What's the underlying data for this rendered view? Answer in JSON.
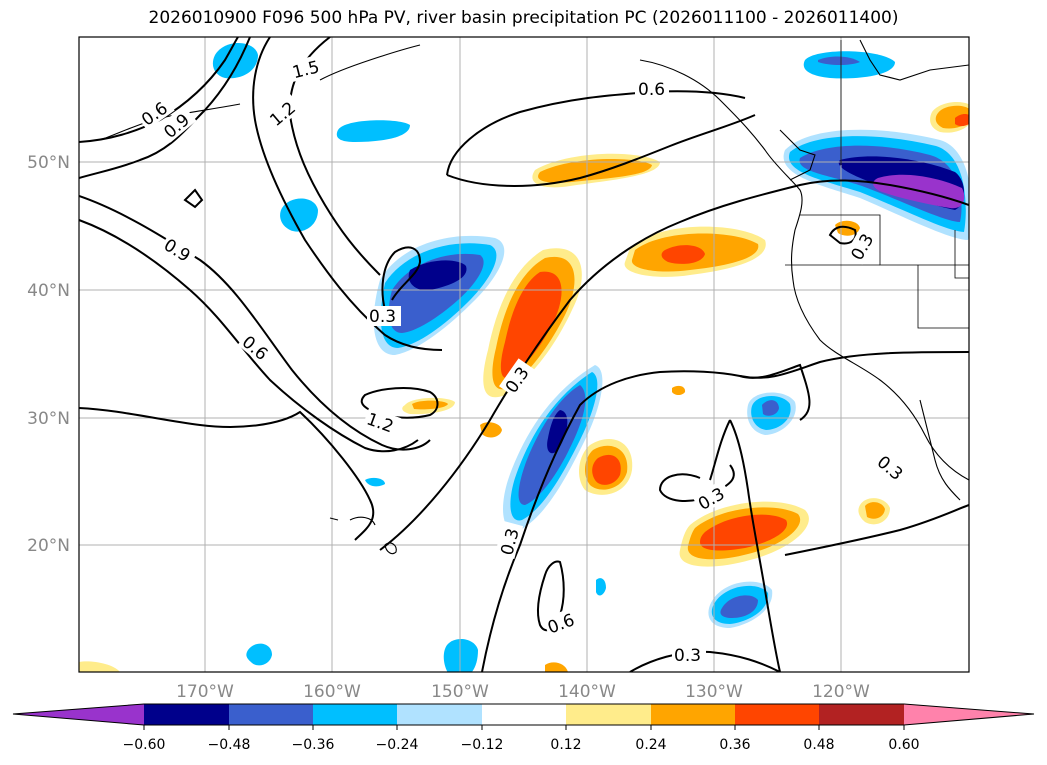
{
  "title": "2026010900 F096 500 hPa PV, river basin precipitation PC (2026011100 - 2026011400)",
  "latitude_labels": [
    "50°N",
    "40°N",
    "30°N",
    "20°N"
  ],
  "longitude_labels": [
    "170°W",
    "160°W",
    "150°W",
    "140°W",
    "130°W",
    "120°W"
  ],
  "pv_contour_labels": [
    "1.5",
    "1.2",
    "0.9",
    "0.6",
    "0.6",
    "0.9",
    "0.6",
    "0.3",
    "1.2",
    "0.3",
    "0.3",
    "0.3",
    "0.6",
    "0.3",
    "0.3",
    "0.3"
  ],
  "colorbar": {
    "tick_labels": [
      "−0.60",
      "−0.48",
      "−0.36",
      "−0.24",
      "−0.12",
      "0.12",
      "0.24",
      "0.36",
      "0.48",
      "0.60"
    ],
    "colors": [
      "#9933cc",
      "#00008b",
      "#3a5fcd",
      "#00bfff",
      "#b0e2ff",
      "#ffffff",
      "#ffec8b",
      "#ffa500",
      "#ff4500",
      "#b22222",
      "#ff82ab"
    ]
  },
  "colors": {
    "grid": "#b0b0b0",
    "coastline": "#000000",
    "contour": "#000000",
    "axis_label": "#888888"
  }
}
